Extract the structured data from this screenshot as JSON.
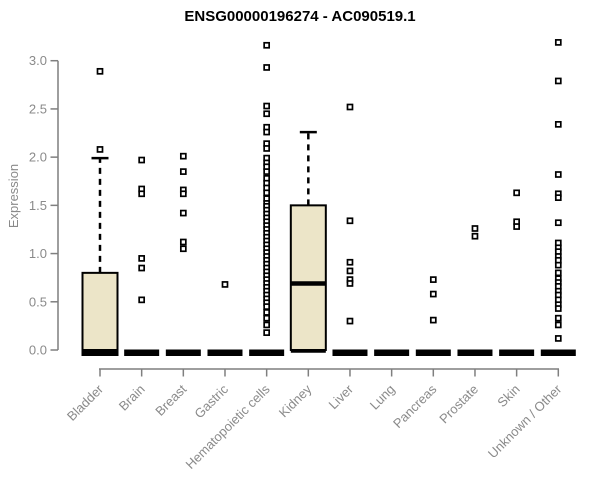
{
  "chart_data": {
    "type": "boxplot",
    "title": "ENSG00000196274 - AC090519.1",
    "ylabel": "Expression",
    "xlabel": "",
    "ylim": [
      0,
      3.2
    ],
    "y_tick_labels": [
      "0.0",
      "0.5",
      "1.0",
      "1.5",
      "2.0",
      "2.5",
      "3.0"
    ],
    "grid": false,
    "legend": false,
    "box_fill_color": "#ece5c8",
    "box_line_color": "#000000",
    "axis_color": "#7f7f7f",
    "label_color": "#8a8a8a",
    "categories": [
      "Bladder",
      "Brain",
      "Breast",
      "Gastric",
      "Hematopoietic cells",
      "Kidney",
      "Liver",
      "Lung",
      "Pancreas",
      "Prostate",
      "Skin",
      "Unknown / Other"
    ],
    "boxes": [
      {
        "category": "Bladder",
        "q1": 0,
        "median": 0,
        "q3": 0.8,
        "whisker_low": 0,
        "whisker_high": 1.99,
        "points": [
          2.08,
          2.89
        ]
      },
      {
        "category": "Brain",
        "q1": 0,
        "median": 0,
        "q3": 0,
        "whisker_low": 0,
        "whisker_high": 0,
        "points": [
          1.97,
          1.67,
          1.62,
          0.95,
          0.85,
          0.52
        ]
      },
      {
        "category": "Breast",
        "q1": 0,
        "median": 0,
        "q3": 0,
        "whisker_low": 0,
        "whisker_high": 0,
        "points": [
          2.01,
          1.85,
          1.66,
          1.62,
          1.42,
          1.12,
          1.05
        ]
      },
      {
        "category": "Gastric",
        "q1": 0,
        "median": 0,
        "q3": 0,
        "whisker_low": 0,
        "whisker_high": 0,
        "points": [
          0.68
        ]
      },
      {
        "category": "Hematopoietic cells",
        "q1": 0,
        "median": 0,
        "q3": 0,
        "whisker_low": 0,
        "whisker_high": 0,
        "points": [
          3.16,
          2.93,
          2.53,
          2.45,
          2.31,
          2.26,
          2.14,
          2.09,
          1.99,
          1.94,
          1.9,
          1.85,
          1.78,
          1.73,
          1.68,
          1.63,
          1.57,
          1.52,
          1.49,
          1.45,
          1.41,
          1.37,
          1.33,
          1.29,
          1.25,
          1.21,
          1.17,
          1.13,
          1.09,
          1.05,
          1.01,
          0.97,
          0.93,
          0.89,
          0.85,
          0.81,
          0.77,
          0.73,
          0.69,
          0.65,
          0.61,
          0.57,
          0.53,
          0.49,
          0.45,
          0.39,
          0.33,
          0.26,
          0.18
        ],
        "note": "dense overlapping outlier stack"
      },
      {
        "category": "Kidney",
        "q1": 0,
        "median": 0.69,
        "q3": 1.5,
        "whisker_low": 0,
        "whisker_high": 2.26,
        "points": []
      },
      {
        "category": "Liver",
        "q1": 0,
        "median": 0,
        "q3": 0,
        "whisker_low": 0,
        "whisker_high": 0,
        "points": [
          2.52,
          1.34,
          0.91,
          0.82,
          0.73,
          0.69,
          0.3
        ]
      },
      {
        "category": "Lung",
        "q1": 0,
        "median": 0,
        "q3": 0,
        "whisker_low": 0,
        "whisker_high": 0,
        "points": []
      },
      {
        "category": "Pancreas",
        "q1": 0,
        "median": 0,
        "q3": 0,
        "whisker_low": 0,
        "whisker_high": 0,
        "points": [
          0.73,
          0.58,
          0.31
        ]
      },
      {
        "category": "Prostate",
        "q1": 0,
        "median": 0,
        "q3": 0,
        "whisker_low": 0,
        "whisker_high": 0,
        "points": [
          1.26,
          1.18
        ]
      },
      {
        "category": "Skin",
        "q1": 0,
        "median": 0,
        "q3": 0,
        "whisker_low": 0,
        "whisker_high": 0,
        "points": [
          1.63,
          1.33,
          1.28
        ]
      },
      {
        "category": "Unknown / Other",
        "q1": 0,
        "median": 0,
        "q3": 0,
        "whisker_low": 0,
        "whisker_high": 0,
        "points": [
          3.19,
          2.79,
          2.34,
          1.82,
          1.62,
          1.58,
          1.32,
          1.11,
          1.06,
          1.02,
          0.97,
          0.93,
          0.88,
          0.8,
          0.74,
          0.7,
          0.66,
          0.61,
          0.57,
          0.52,
          0.47,
          0.43,
          0.33,
          0.26,
          0.12
        ]
      }
    ]
  }
}
